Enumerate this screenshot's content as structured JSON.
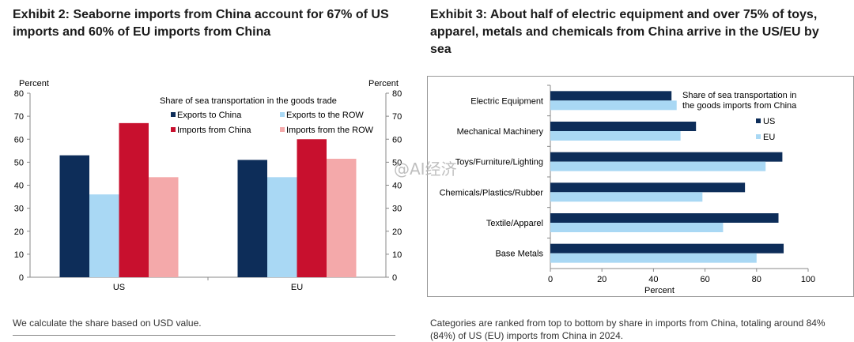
{
  "watermark": "@AI经济",
  "chart_data": [
    {
      "type": "bar",
      "exhibit_title": "Exhibit 2: Seaborne imports from China account for 67% of US imports and 60% of EU imports from China",
      "ylabel_left": "Percent",
      "ylabel_right": "Percent",
      "ylim": [
        0,
        80
      ],
      "yticks": [
        0,
        10,
        20,
        30,
        40,
        50,
        60,
        70,
        80
      ],
      "categories": [
        "US",
        "EU"
      ],
      "legend_title": "Share of sea transportation in the goods trade",
      "legend_placement": "top-right",
      "grid": false,
      "series": [
        {
          "name": "Exports to China",
          "color": "#0d2d59",
          "values": [
            53,
            51
          ]
        },
        {
          "name": "Exports to the ROW",
          "color": "#a9d8f4",
          "values": [
            36,
            43.5
          ]
        },
        {
          "name": "Imports from China",
          "color": "#c8102e",
          "values": [
            67,
            60
          ]
        },
        {
          "name": "Imports from the ROW",
          "color": "#f4a9aa",
          "values": [
            43.5,
            51.5
          ]
        }
      ],
      "note": "We calculate the share based on USD value."
    },
    {
      "type": "bar",
      "orientation": "horizontal",
      "exhibit_title": "Exhibit 3: About half of electric equipment and over 75% of toys, apparel, metals and chemicals from China arrive in the US/EU by sea",
      "xlabel": "Percent",
      "xlim": [
        0,
        100
      ],
      "xticks": [
        0,
        20,
        40,
        60,
        80,
        100
      ],
      "categories": [
        "Electric Equipment",
        "Mechanical Machinery",
        "Toys/Furniture/Lighting",
        "Chemicals/Plastics/Rubber",
        "Textile/Apparel",
        "Base Metals"
      ],
      "legend_title": "Share of sea transportation in the goods imports from China",
      "legend_placement": "top-right",
      "grid": false,
      "series": [
        {
          "name": "US",
          "color": "#0d2d59",
          "values": [
            47,
            56.5,
            90,
            75.5,
            88.5,
            90.5
          ]
        },
        {
          "name": "EU",
          "color": "#a9d8f4",
          "values": [
            49,
            50.5,
            83.5,
            59,
            67,
            80
          ]
        }
      ],
      "note": "Categories are ranked from top to bottom by share in imports from China, totaling around 84% (84%) of US (EU) imports from China in 2024."
    }
  ]
}
